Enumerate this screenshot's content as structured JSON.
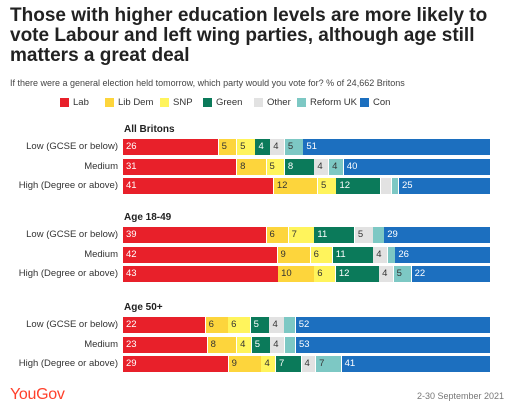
{
  "chart_data": {
    "type": "bar",
    "title": "Those with higher education levels are more likely to vote Labour and left wing parties, although age still matters a great deal",
    "subtitle": "If there were a general election held tomorrow, which party would you vote for? % of 24,662 Britons",
    "source": "YouGov",
    "date_range": "2-30 September 2021",
    "stacked": true,
    "legend_position": "top",
    "parties": [
      {
        "name": "Lab",
        "color": "#e8202a",
        "label_color": "#ffffff"
      },
      {
        "name": "Lib Dem",
        "color": "#fdd53c",
        "label_color": "#333333"
      },
      {
        "name": "SNP",
        "color": "#fff45c",
        "label_color": "#333333"
      },
      {
        "name": "Green",
        "color": "#0b7a5a",
        "label_color": "#ffffff"
      },
      {
        "name": "Other",
        "color": "#e2e2e2",
        "label_color": "#333333"
      },
      {
        "name": "Reform UK",
        "color": "#7dc8c4",
        "label_color": "#333333"
      },
      {
        "name": "Con",
        "color": "#1c6fbf",
        "label_color": "#ffffff"
      }
    ],
    "groups": [
      {
        "title": "All Britons",
        "rows": [
          {
            "label": "Low (GCSE or below)",
            "values": [
              26,
              5,
              5,
              4,
              4,
              5,
              51
            ]
          },
          {
            "label": "Medium",
            "values": [
              31,
              8,
              5,
              8,
              4,
              4,
              40
            ]
          },
          {
            "label": "High (Degree or above)",
            "values": [
              41,
              12,
              5,
              12,
              3,
              2,
              25
            ]
          }
        ]
      },
      {
        "title": "Age 18-49",
        "rows": [
          {
            "label": "Low (GCSE or below)",
            "values": [
              39,
              6,
              7,
              11,
              5,
              3,
              29
            ]
          },
          {
            "label": "Medium",
            "values": [
              42,
              9,
              6,
              11,
              4,
              2,
              26
            ]
          },
          {
            "label": "High (Degree or above)",
            "values": [
              43,
              10,
              6,
              12,
              4,
              5,
              22
            ]
          }
        ]
      },
      {
        "title": "Age 50+",
        "rows": [
          {
            "label": "Low (GCSE or below)",
            "values": [
              22,
              6,
              6,
              5,
              4,
              3,
              52
            ]
          },
          {
            "label": "Medium",
            "values": [
              23,
              8,
              4,
              5,
              4,
              3,
              53
            ]
          },
          {
            "label": "High (Degree or above)",
            "values": [
              29,
              9,
              4,
              7,
              4,
              7,
              41
            ]
          }
        ]
      }
    ]
  }
}
